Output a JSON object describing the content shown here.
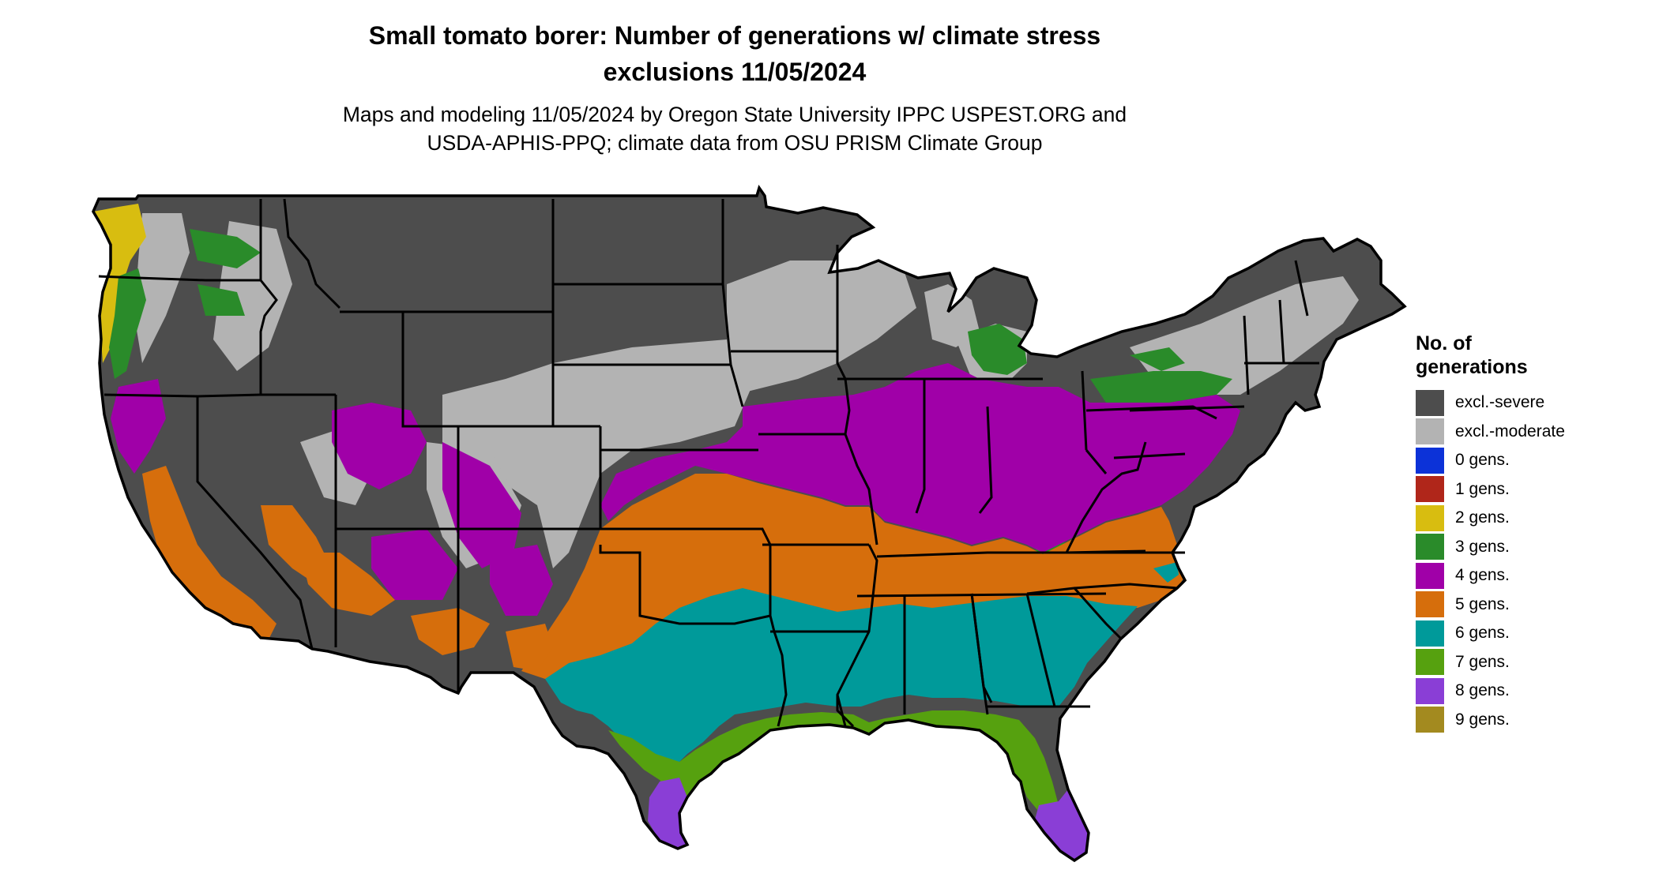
{
  "title": {
    "line1": "Small tomato borer: Number of generations w/ climate stress",
    "line2": "exclusions 11/05/2024"
  },
  "subtitle": {
    "line1": "Maps and modeling 11/05/2024 by Oregon State University IPPC USPEST.ORG and",
    "line2": "USDA-APHIS-PPQ; climate data from OSU PRISM Climate Group"
  },
  "legend": {
    "title_line1": "No. of",
    "title_line2": "generations",
    "items": [
      {
        "label": "excl.-severe",
        "color": "#4d4d4d"
      },
      {
        "label": "excl.-moderate",
        "color": "#b3b3b3"
      },
      {
        "label": "0 gens.",
        "color": "#0c32d8"
      },
      {
        "label": "1 gens.",
        "color": "#b0261a"
      },
      {
        "label": "2 gens.",
        "color": "#d8bd10"
      },
      {
        "label": "3 gens.",
        "color": "#2a8b2a"
      },
      {
        "label": "4 gens.",
        "color": "#a000a8"
      },
      {
        "label": "5 gens.",
        "color": "#d66e0c"
      },
      {
        "label": "6 gens.",
        "color": "#009a9a"
      },
      {
        "label": "7 gens.",
        "color": "#56a10f"
      },
      {
        "label": "8 gens.",
        "color": "#8a3ed6"
      },
      {
        "label": "9 gens.",
        "color": "#a38a1f"
      }
    ]
  }
}
